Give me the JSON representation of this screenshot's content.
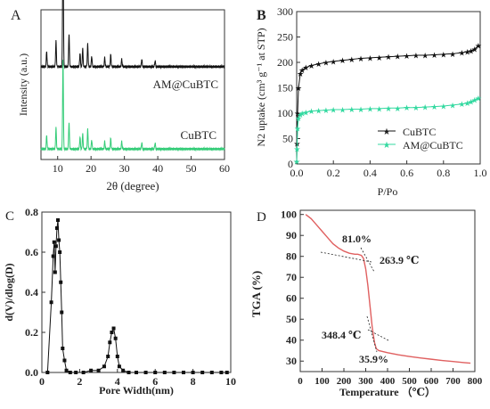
{
  "charts": [
    {
      "panel_label": "A",
      "type": "line",
      "xlabel": "2θ (degree)",
      "ylabel": "Intensity (a.u.)",
      "xlim": [
        5,
        60
      ],
      "xticks": [
        "10",
        "20",
        "30",
        "40",
        "50",
        "60"
      ],
      "xtick_values": [
        10,
        20,
        30,
        40,
        50,
        60
      ],
      "series": [
        {
          "name": "AM@CuBTC",
          "color": "#111111",
          "baseline": 0.62,
          "peaks": [
            [
              6.7,
              0.1
            ],
            [
              9.5,
              0.17
            ],
            [
              11.6,
              0.95
            ],
            [
              13.4,
              0.22
            ],
            [
              16.7,
              0.09
            ],
            [
              17.5,
              0.12
            ],
            [
              19.0,
              0.15
            ],
            [
              20.2,
              0.07
            ],
            [
              24.1,
              0.06
            ],
            [
              25.9,
              0.08
            ],
            [
              29.2,
              0.05
            ],
            [
              35.2,
              0.05
            ],
            [
              39.2,
              0.04
            ]
          ]
        },
        {
          "name": "CuBTC",
          "color": "#33cc77",
          "baseline": 0.07,
          "peaks": [
            [
              6.7,
              0.09
            ],
            [
              9.5,
              0.14
            ],
            [
              11.6,
              0.6
            ],
            [
              13.4,
              0.18
            ],
            [
              16.7,
              0.08
            ],
            [
              17.5,
              0.1
            ],
            [
              19.0,
              0.13
            ],
            [
              20.2,
              0.06
            ],
            [
              24.1,
              0.05
            ],
            [
              25.9,
              0.07
            ],
            [
              29.2,
              0.05
            ],
            [
              35.2,
              0.04
            ],
            [
              39.2,
              0.04
            ]
          ]
        }
      ]
    },
    {
      "panel_label": "B",
      "type": "line",
      "xlabel": "P/Po",
      "ylabel": "N2 uptake (cm³ g⁻¹ at STP)",
      "xlim": [
        0,
        1.0
      ],
      "ylim": [
        0,
        300
      ],
      "xticks": [
        "0.0",
        "0.2",
        "0.4",
        "0.6",
        "0.8",
        "1.0"
      ],
      "xtick_values": [
        0,
        0.2,
        0.4,
        0.6,
        0.8,
        1.0
      ],
      "yticks": [
        "0",
        "50",
        "100",
        "150",
        "200",
        "250",
        "300"
      ],
      "ytick_values": [
        0,
        50,
        100,
        150,
        200,
        250,
        300
      ],
      "legend": [
        "CuBTC",
        "AM@CuBTC"
      ],
      "series": [
        {
          "name": "CuBTC",
          "color": "#111111",
          "marker": "★",
          "x": [
            0.0,
            0.002,
            0.005,
            0.01,
            0.02,
            0.03,
            0.05,
            0.08,
            0.12,
            0.16,
            0.2,
            0.25,
            0.3,
            0.35,
            0.4,
            0.45,
            0.5,
            0.55,
            0.6,
            0.65,
            0.7,
            0.75,
            0.8,
            0.85,
            0.9,
            0.93,
            0.95,
            0.97,
            0.99
          ],
          "y": [
            5,
            40,
            100,
            150,
            178,
            185,
            190,
            194,
            197,
            200,
            202,
            204,
            206,
            208,
            209,
            210,
            211,
            212,
            213,
            214,
            214,
            215,
            216,
            217,
            219,
            221,
            223,
            226,
            233
          ]
        },
        {
          "name": "AM@CuBTC",
          "color": "#33d9a0",
          "marker": "★",
          "x": [
            0.0,
            0.002,
            0.005,
            0.01,
            0.02,
            0.03,
            0.05,
            0.08,
            0.12,
            0.16,
            0.2,
            0.25,
            0.3,
            0.35,
            0.4,
            0.45,
            0.5,
            0.55,
            0.6,
            0.65,
            0.7,
            0.75,
            0.8,
            0.85,
            0.9,
            0.93,
            0.95,
            0.97,
            0.99
          ],
          "y": [
            5,
            30,
            70,
            90,
            97,
            100,
            102,
            104,
            105,
            106,
            107,
            107,
            108,
            108,
            109,
            109,
            110,
            110,
            111,
            111,
            112,
            113,
            114,
            116,
            118,
            120,
            123,
            126,
            130
          ]
        }
      ]
    },
    {
      "panel_label": "C",
      "type": "line",
      "xlabel": "Pore Width(nm)",
      "ylabel": "d(V)/dlog(D)",
      "xlim": [
        0,
        10
      ],
      "ylim": [
        0,
        0.8
      ],
      "xticks": [
        "0",
        "2",
        "4",
        "6",
        "8",
        "10"
      ],
      "xtick_values": [
        0,
        2,
        4,
        6,
        8,
        10
      ],
      "yticks": [
        "0.0",
        "0.2",
        "0.4",
        "0.6",
        "0.8"
      ],
      "ytick_values": [
        0,
        0.2,
        0.4,
        0.6,
        0.8
      ],
      "series": [
        {
          "name": "",
          "color": "#111111",
          "marker": "■",
          "x": [
            0.3,
            0.5,
            0.6,
            0.65,
            0.7,
            0.75,
            0.8,
            0.85,
            0.9,
            0.95,
            1.0,
            1.05,
            1.1,
            1.2,
            1.3,
            1.5,
            1.8,
            2.2,
            2.6,
            3.0,
            3.3,
            3.5,
            3.6,
            3.7,
            3.8,
            3.9,
            4.0,
            4.1,
            4.3,
            4.6,
            5.0,
            5.5,
            6.0,
            6.5,
            7.0,
            7.5,
            8.0,
            8.5,
            9.0,
            9.5,
            9.8
          ],
          "y": [
            0.0,
            0.35,
            0.58,
            0.65,
            0.5,
            0.63,
            0.72,
            0.76,
            0.66,
            0.6,
            0.45,
            0.3,
            0.12,
            0.06,
            0.01,
            0.0,
            0.0,
            0.0,
            0.01,
            0.01,
            0.03,
            0.08,
            0.15,
            0.2,
            0.22,
            0.17,
            0.08,
            0.03,
            0.01,
            0.0,
            0.0,
            0.0,
            0.0,
            0.0,
            0.0,
            0.0,
            0.0,
            0.0,
            0.0,
            0.0,
            0.0
          ]
        }
      ]
    },
    {
      "panel_label": "D",
      "type": "line",
      "xlabel": "Temperature （℃）",
      "ylabel": "TGA (%)",
      "xlim": [
        0,
        800
      ],
      "ylim": [
        25,
        102
      ],
      "xticks": [
        "0",
        "100",
        "200",
        "300",
        "400",
        "500",
        "600",
        "700",
        "800"
      ],
      "xtick_values": [
        0,
        100,
        200,
        300,
        400,
        500,
        600,
        700,
        800
      ],
      "yticks": [
        "30",
        "40",
        "50",
        "60",
        "70",
        "80",
        "90",
        "100"
      ],
      "ytick_values": [
        30,
        40,
        50,
        60,
        70,
        80,
        90,
        100
      ],
      "annotations": [
        "81.0%",
        "263.9 ℃",
        "348.4 ℃",
        "35.9%"
      ],
      "series": [
        {
          "name": "",
          "color": "#e06060",
          "x": [
            25,
            50,
            75,
            100,
            125,
            150,
            175,
            200,
            225,
            250,
            263.9,
            280,
            290,
            300,
            310,
            320,
            330,
            340,
            348.4,
            360,
            400,
            450,
            500,
            550,
            600,
            650,
            700,
            750,
            780
          ],
          "y": [
            100,
            98,
            95,
            92,
            89,
            86,
            84,
            82.5,
            81.5,
            81,
            81,
            80.5,
            79,
            74,
            66,
            56,
            46,
            39,
            35.9,
            35,
            34,
            33,
            32.2,
            31.5,
            30.9,
            30.3,
            29.8,
            29.3,
            29
          ]
        }
      ]
    }
  ],
  "chart_data": [
    {
      "type": "line",
      "title": "",
      "xlabel": "2θ (degree)",
      "ylabel": "Intensity (a.u.)",
      "series": [
        {
          "name": "AM@CuBTC"
        },
        {
          "name": "CuBTC"
        }
      ]
    },
    {
      "type": "line",
      "xlabel": "P/Po",
      "ylabel": "N2 uptake (cm³ g⁻¹ at STP)",
      "xlim": [
        0,
        1.0
      ],
      "ylim": [
        0,
        300
      ],
      "series": [
        {
          "name": "CuBTC"
        },
        {
          "name": "AM@CuBTC"
        }
      ]
    },
    {
      "type": "line",
      "xlabel": "Pore Width(nm)",
      "ylabel": "d(V)/dlog(D)",
      "xlim": [
        0,
        10
      ],
      "ylim": [
        0,
        0.8
      ]
    },
    {
      "type": "line",
      "xlabel": "Temperature （℃）",
      "ylabel": "TGA (%)",
      "xlim": [
        0,
        800
      ],
      "ylim": [
        25,
        102
      ]
    }
  ]
}
